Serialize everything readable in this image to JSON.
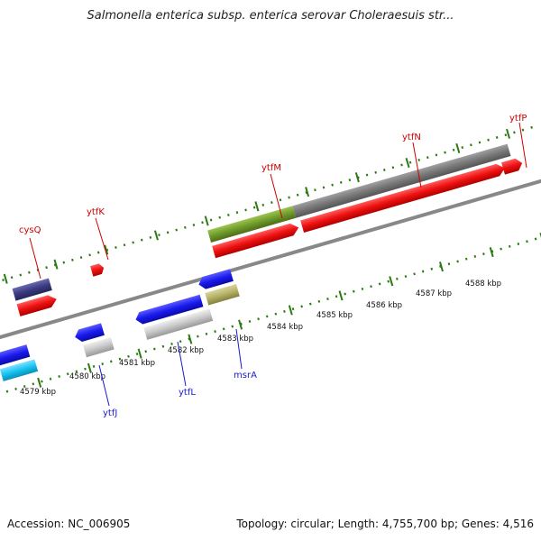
{
  "title": "Salmonella enterica subsp. enterica serovar Choleraesuis str...",
  "footer": {
    "accession": "Accession: NC_006905",
    "stats": "Topology: circular; Length: 4,755,700 bp; Genes: 4,516"
  },
  "colors": {
    "red": "#ee1111",
    "blue": "#1a1aee",
    "navy": "#3a3a80",
    "grey": "#777777",
    "light_grey": "#c8c8c8",
    "olive": "#6f9a2a",
    "khaki": "#b5b168",
    "cyan": "#18c2f2",
    "tick_green": "#2a7a12",
    "label_red": "#cc0000",
    "label_blue": "#1a1acc"
  },
  "scale_labels": [
    "4579 kbp",
    "4580 kbp",
    "4581 kbp",
    "4582 kbp",
    "4583 kbp",
    "4584 kbp",
    "4585 kbp",
    "4586 kbp",
    "4587 kbp",
    "4588 kbp"
  ],
  "gene_labels": [
    {
      "name": "cysQ",
      "strand": "plus"
    },
    {
      "name": "ytfK",
      "strand": "plus"
    },
    {
      "name": "ytfM",
      "strand": "plus"
    },
    {
      "name": "ytfN",
      "strand": "plus"
    },
    {
      "name": "ytfP",
      "strand": "plus"
    },
    {
      "name": "ytfJ",
      "strand": "minus"
    },
    {
      "name": "ytfL",
      "strand": "minus"
    },
    {
      "name": "msrA",
      "strand": "minus"
    }
  ]
}
